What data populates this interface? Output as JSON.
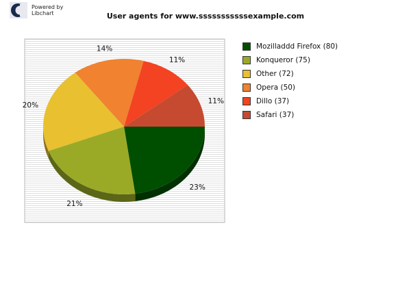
{
  "branding": {
    "line1": "Powered by",
    "line2": "Libchart"
  },
  "chart_data": {
    "type": "pie",
    "title": "User agents for www.sssssssssssexample.com",
    "slices": [
      {
        "label": "Mozilladdd Firefox",
        "value": 80,
        "percent_label": "23%",
        "color": "#004f00"
      },
      {
        "label": "Konqueror",
        "value": 75,
        "percent_label": "21%",
        "color": "#9aaa26"
      },
      {
        "label": "Other",
        "value": 72,
        "percent_label": "20%",
        "color": "#e8c030"
      },
      {
        "label": "Opera",
        "value": 50,
        "percent_label": "14%",
        "color": "#f08230"
      },
      {
        "label": "Dillo",
        "value": 37,
        "percent_label": "11%",
        "color": "#f34322"
      },
      {
        "label": "Safari",
        "value": 37,
        "percent_label": "11%",
        "color": "#c64a30"
      }
    ],
    "legend_position": "right"
  }
}
